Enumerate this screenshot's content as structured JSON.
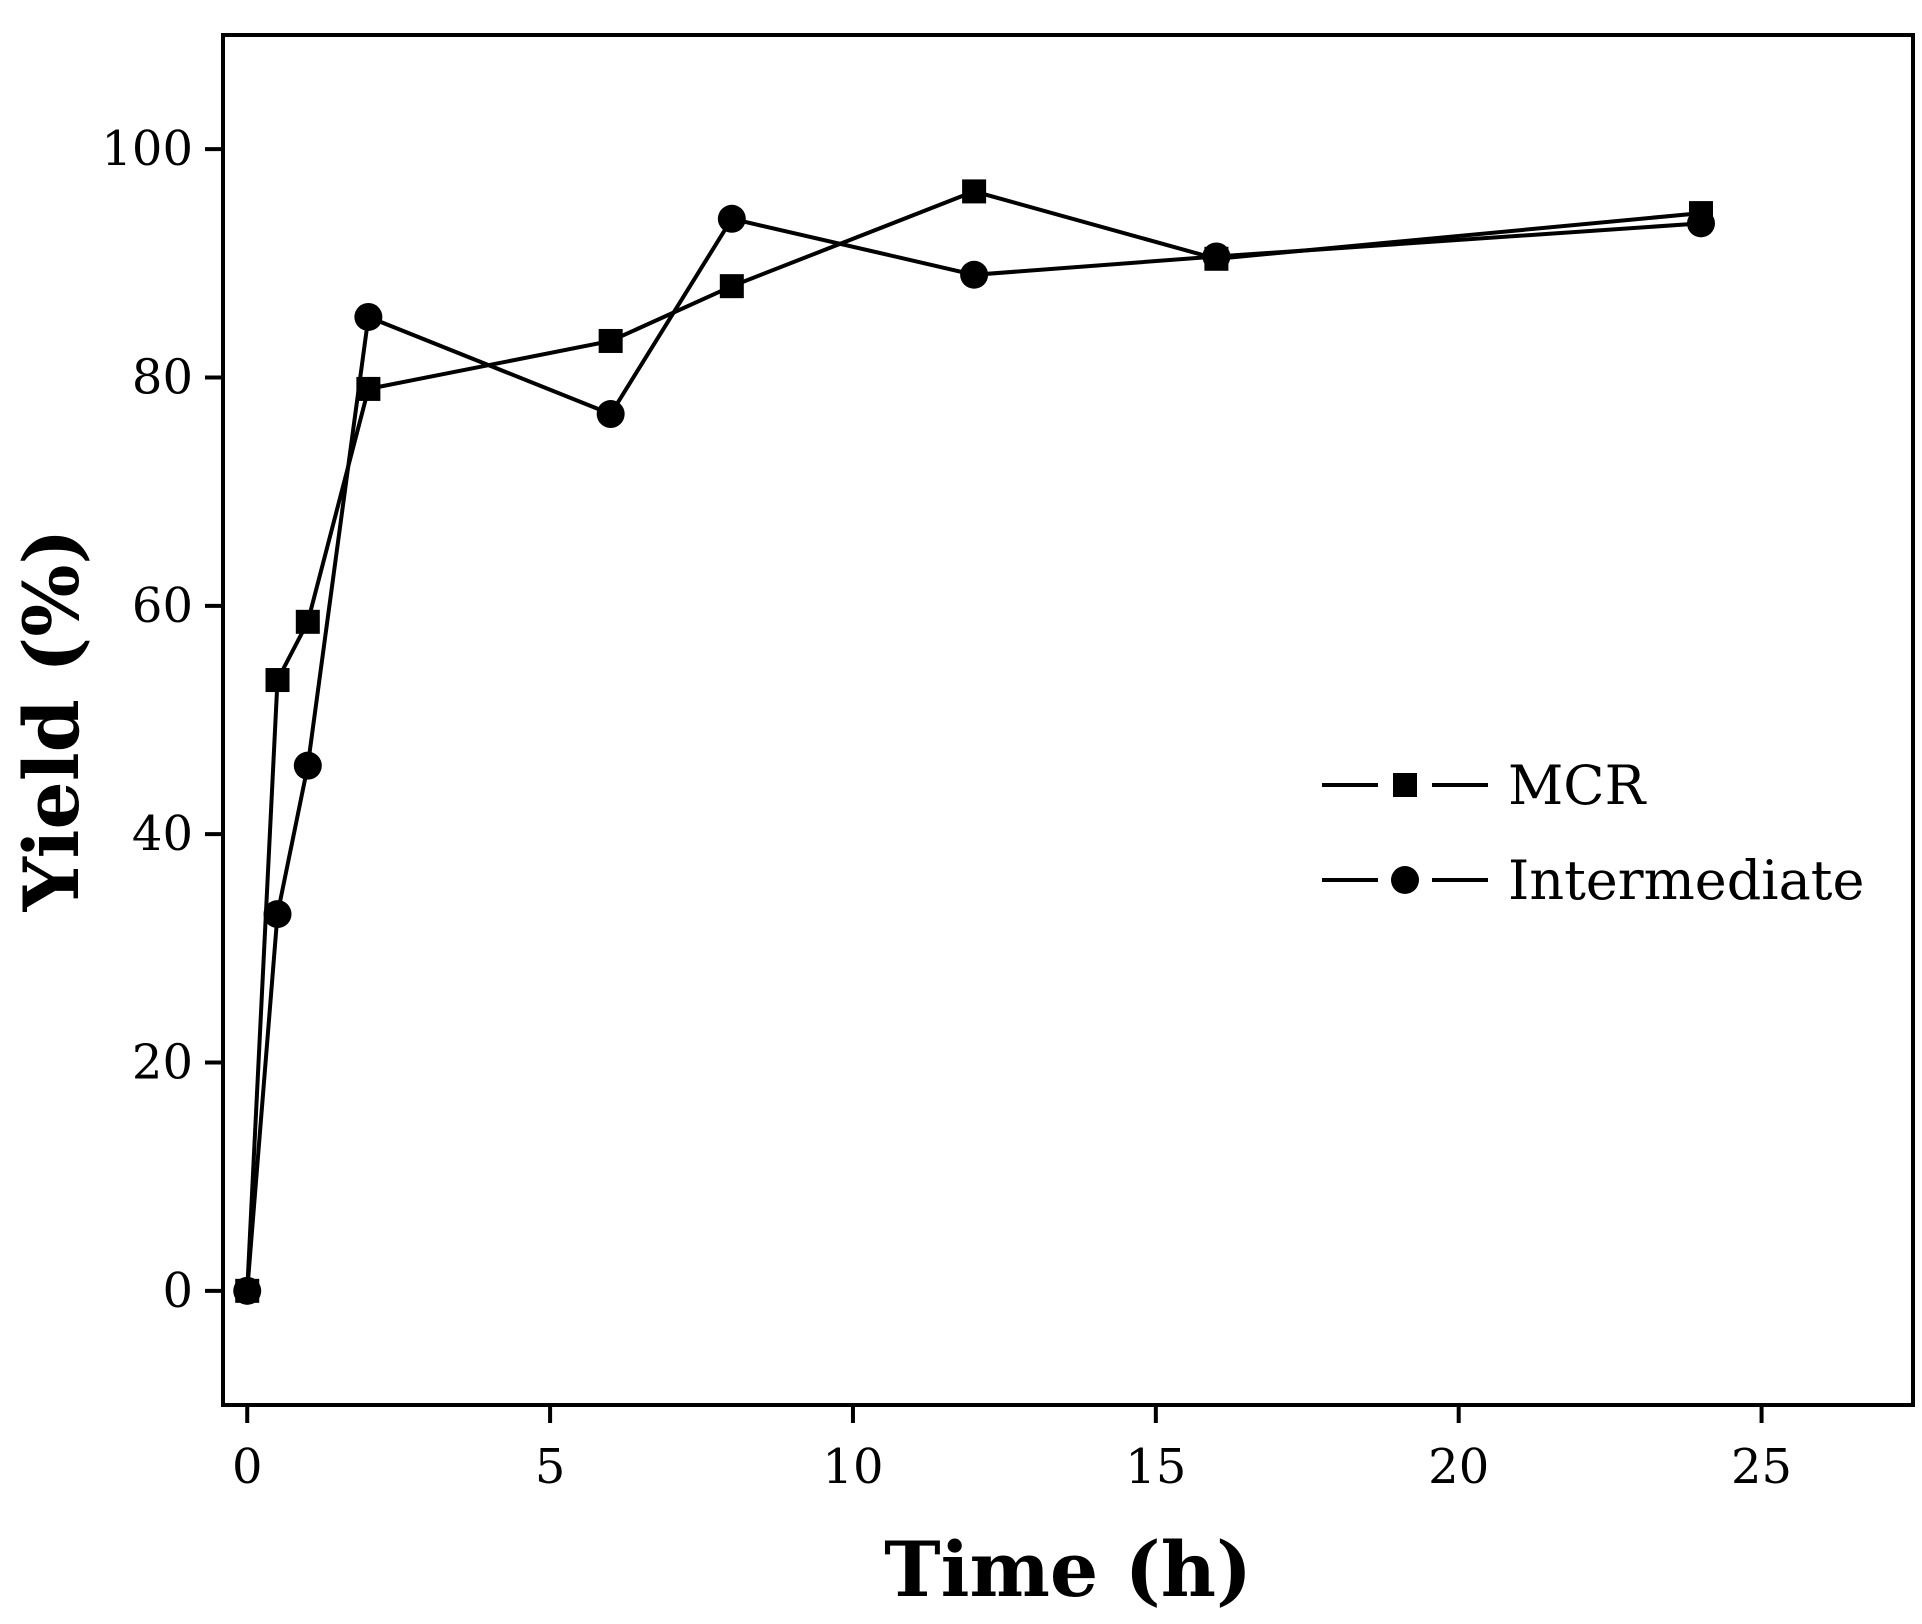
{
  "chart_data": {
    "type": "line",
    "title": "",
    "xlabel": "Time (h)",
    "ylabel": "Yield (%)",
    "xlim": [
      -0.4,
      27.5
    ],
    "ylim": [
      -10,
      110
    ],
    "xticks": [
      0,
      5,
      10,
      15,
      20,
      25
    ],
    "yticks": [
      0,
      20,
      40,
      60,
      80,
      100
    ],
    "grid": false,
    "legend_position": "right",
    "series": [
      {
        "name": "MCR",
        "marker": "square",
        "color": "#000000",
        "x": [
          0,
          0.5,
          1,
          2,
          6,
          8,
          12,
          16,
          24
        ],
        "y": [
          0,
          53.5,
          58.6,
          79,
          83.2,
          88,
          96.3,
          90.4,
          94.4
        ]
      },
      {
        "name": "Intermediate",
        "marker": "circle",
        "color": "#000000",
        "x": [
          0,
          0.5,
          1,
          2,
          6,
          8,
          12,
          16,
          24
        ],
        "y": [
          0,
          33,
          46,
          85.3,
          76.8,
          93.9,
          89,
          90.6,
          93.5
        ]
      }
    ]
  }
}
